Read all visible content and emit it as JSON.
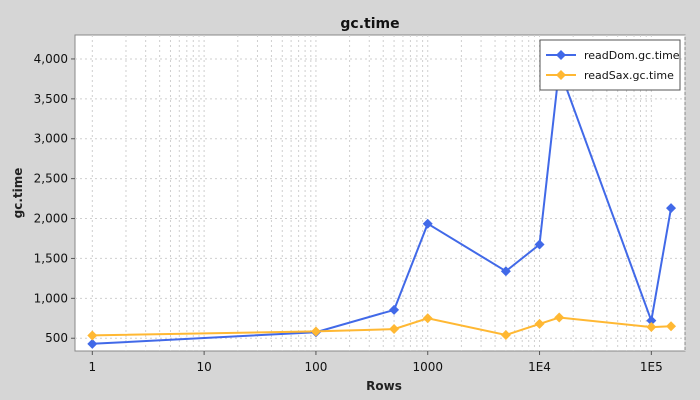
{
  "chart_data": {
    "type": "line",
    "title": "gc.time",
    "xlabel": "Rows",
    "ylabel": "gc.time",
    "x_scale": "log",
    "xlim": [
      0.7,
      200000
    ],
    "ylim": [
      340,
      4300
    ],
    "x_ticks": [
      {
        "value": 1,
        "label": "1"
      },
      {
        "value": 10,
        "label": "10"
      },
      {
        "value": 100,
        "label": "100"
      },
      {
        "value": 1000,
        "label": "1000"
      },
      {
        "value": 10000,
        "label": "1E4"
      },
      {
        "value": 100000,
        "label": "1E5"
      }
    ],
    "y_ticks": [
      {
        "value": 500,
        "label": "500"
      },
      {
        "value": 1000,
        "label": "1,000"
      },
      {
        "value": 1500,
        "label": "1,500"
      },
      {
        "value": 2000,
        "label": "2,000"
      },
      {
        "value": 2500,
        "label": "2,500"
      },
      {
        "value": 3000,
        "label": "3,000"
      },
      {
        "value": 3500,
        "label": "3,500"
      },
      {
        "value": 4000,
        "label": "4,000"
      }
    ],
    "grid": true,
    "legend_position": "top-right",
    "series": [
      {
        "name": "readDom.gc.time",
        "color": "#4169e8",
        "points": [
          [
            1,
            430
          ],
          [
            100,
            575
          ],
          [
            500,
            855
          ],
          [
            1000,
            1935
          ],
          [
            5000,
            1340
          ],
          [
            10000,
            1675
          ],
          [
            15000,
            3880
          ],
          [
            100000,
            720
          ],
          [
            150000,
            2130
          ]
        ]
      },
      {
        "name": "readSax.gc.time",
        "color": "#ffb833",
        "points": [
          [
            1,
            535
          ],
          [
            100,
            585
          ],
          [
            500,
            615
          ],
          [
            1000,
            750
          ],
          [
            5000,
            540
          ],
          [
            10000,
            680
          ],
          [
            15000,
            760
          ],
          [
            100000,
            640
          ],
          [
            150000,
            650
          ]
        ]
      }
    ]
  }
}
